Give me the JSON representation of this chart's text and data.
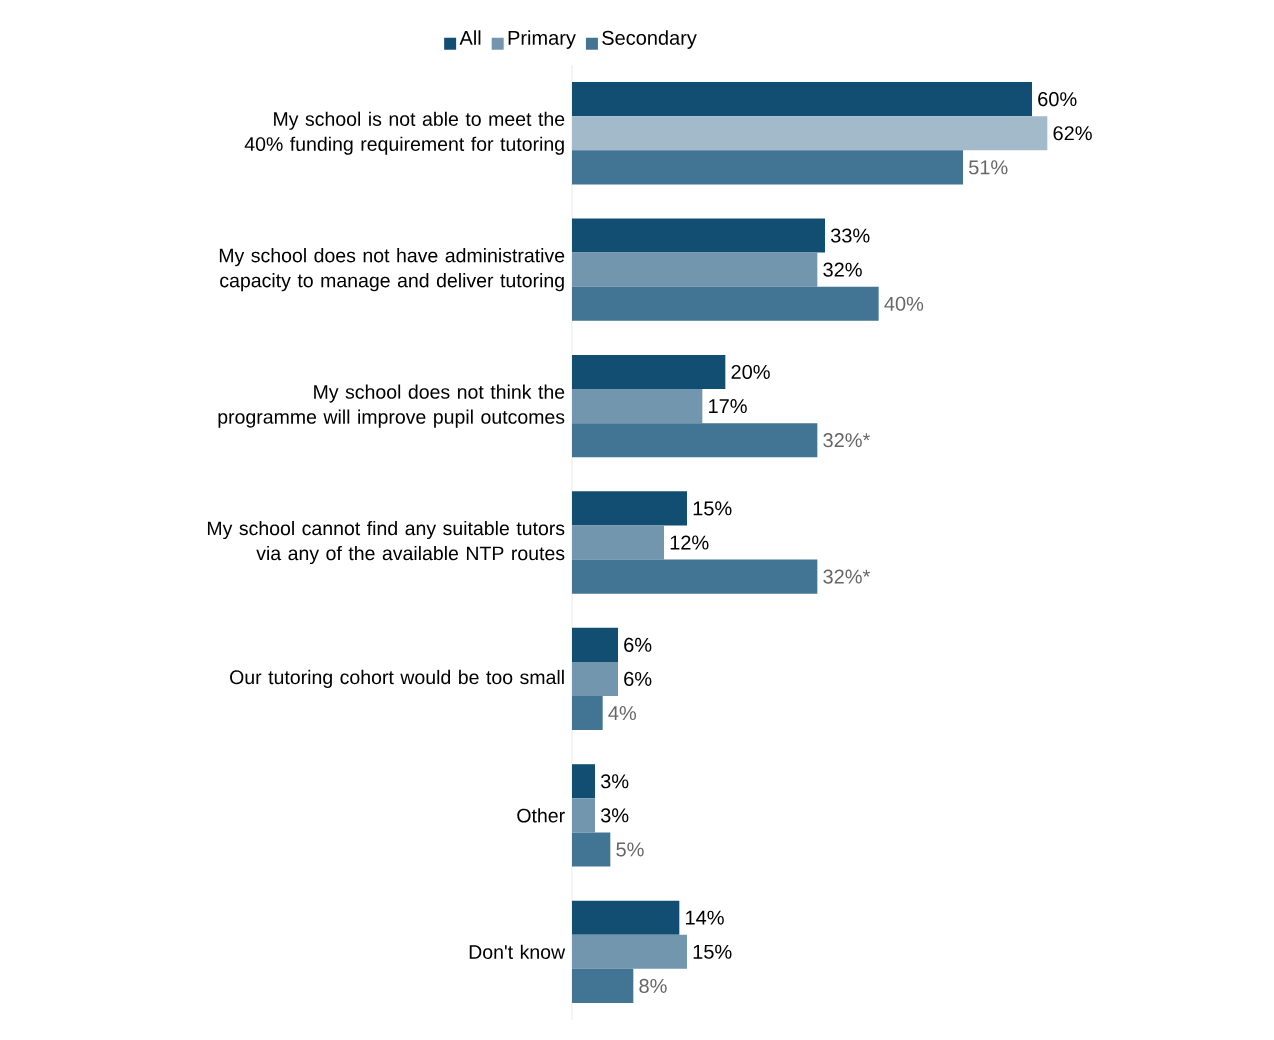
{
  "chart_data": {
    "type": "bar",
    "orientation": "horizontal",
    "legend": "top",
    "categories": [
      "My school is not able to meet the 40% funding requirement for tutoring",
      "My school does not have administrative capacity to manage and deliver tutoring",
      "My school does not think the programme will improve pupil outcomes",
      "My school cannot find any suitable tutors via any of the available NTP routes",
      "Our tutoring cohort would be too small",
      "Other",
      "Don't know"
    ],
    "series": [
      {
        "name": "All",
        "color": "#124e72",
        "values": [
          60,
          33,
          20,
          15,
          6,
          3,
          14
        ],
        "value_labels": [
          "60%",
          "33%",
          "20%",
          "15%",
          "6%",
          "3%",
          "14%"
        ]
      },
      {
        "name": "Primary",
        "color": "#7296ae",
        "colors": [
          "#a3bacb",
          "#7296ae",
          "#7296ae",
          "#7296ae",
          "#7296ae",
          "#7296ae",
          "#7296ae"
        ],
        "values": [
          62,
          32,
          17,
          12,
          6,
          3,
          15
        ],
        "value_labels": [
          "62%",
          "32%",
          "17%",
          "12%",
          "6%",
          "3%",
          "15%"
        ]
      },
      {
        "name": "Secondary",
        "color": "#427593",
        "values": [
          51,
          40,
          32,
          32,
          4,
          5,
          8
        ],
        "value_labels": [
          "51%",
          "40%",
          "32%*",
          "32%*",
          "4%",
          "5%",
          "8%"
        ]
      }
    ]
  }
}
